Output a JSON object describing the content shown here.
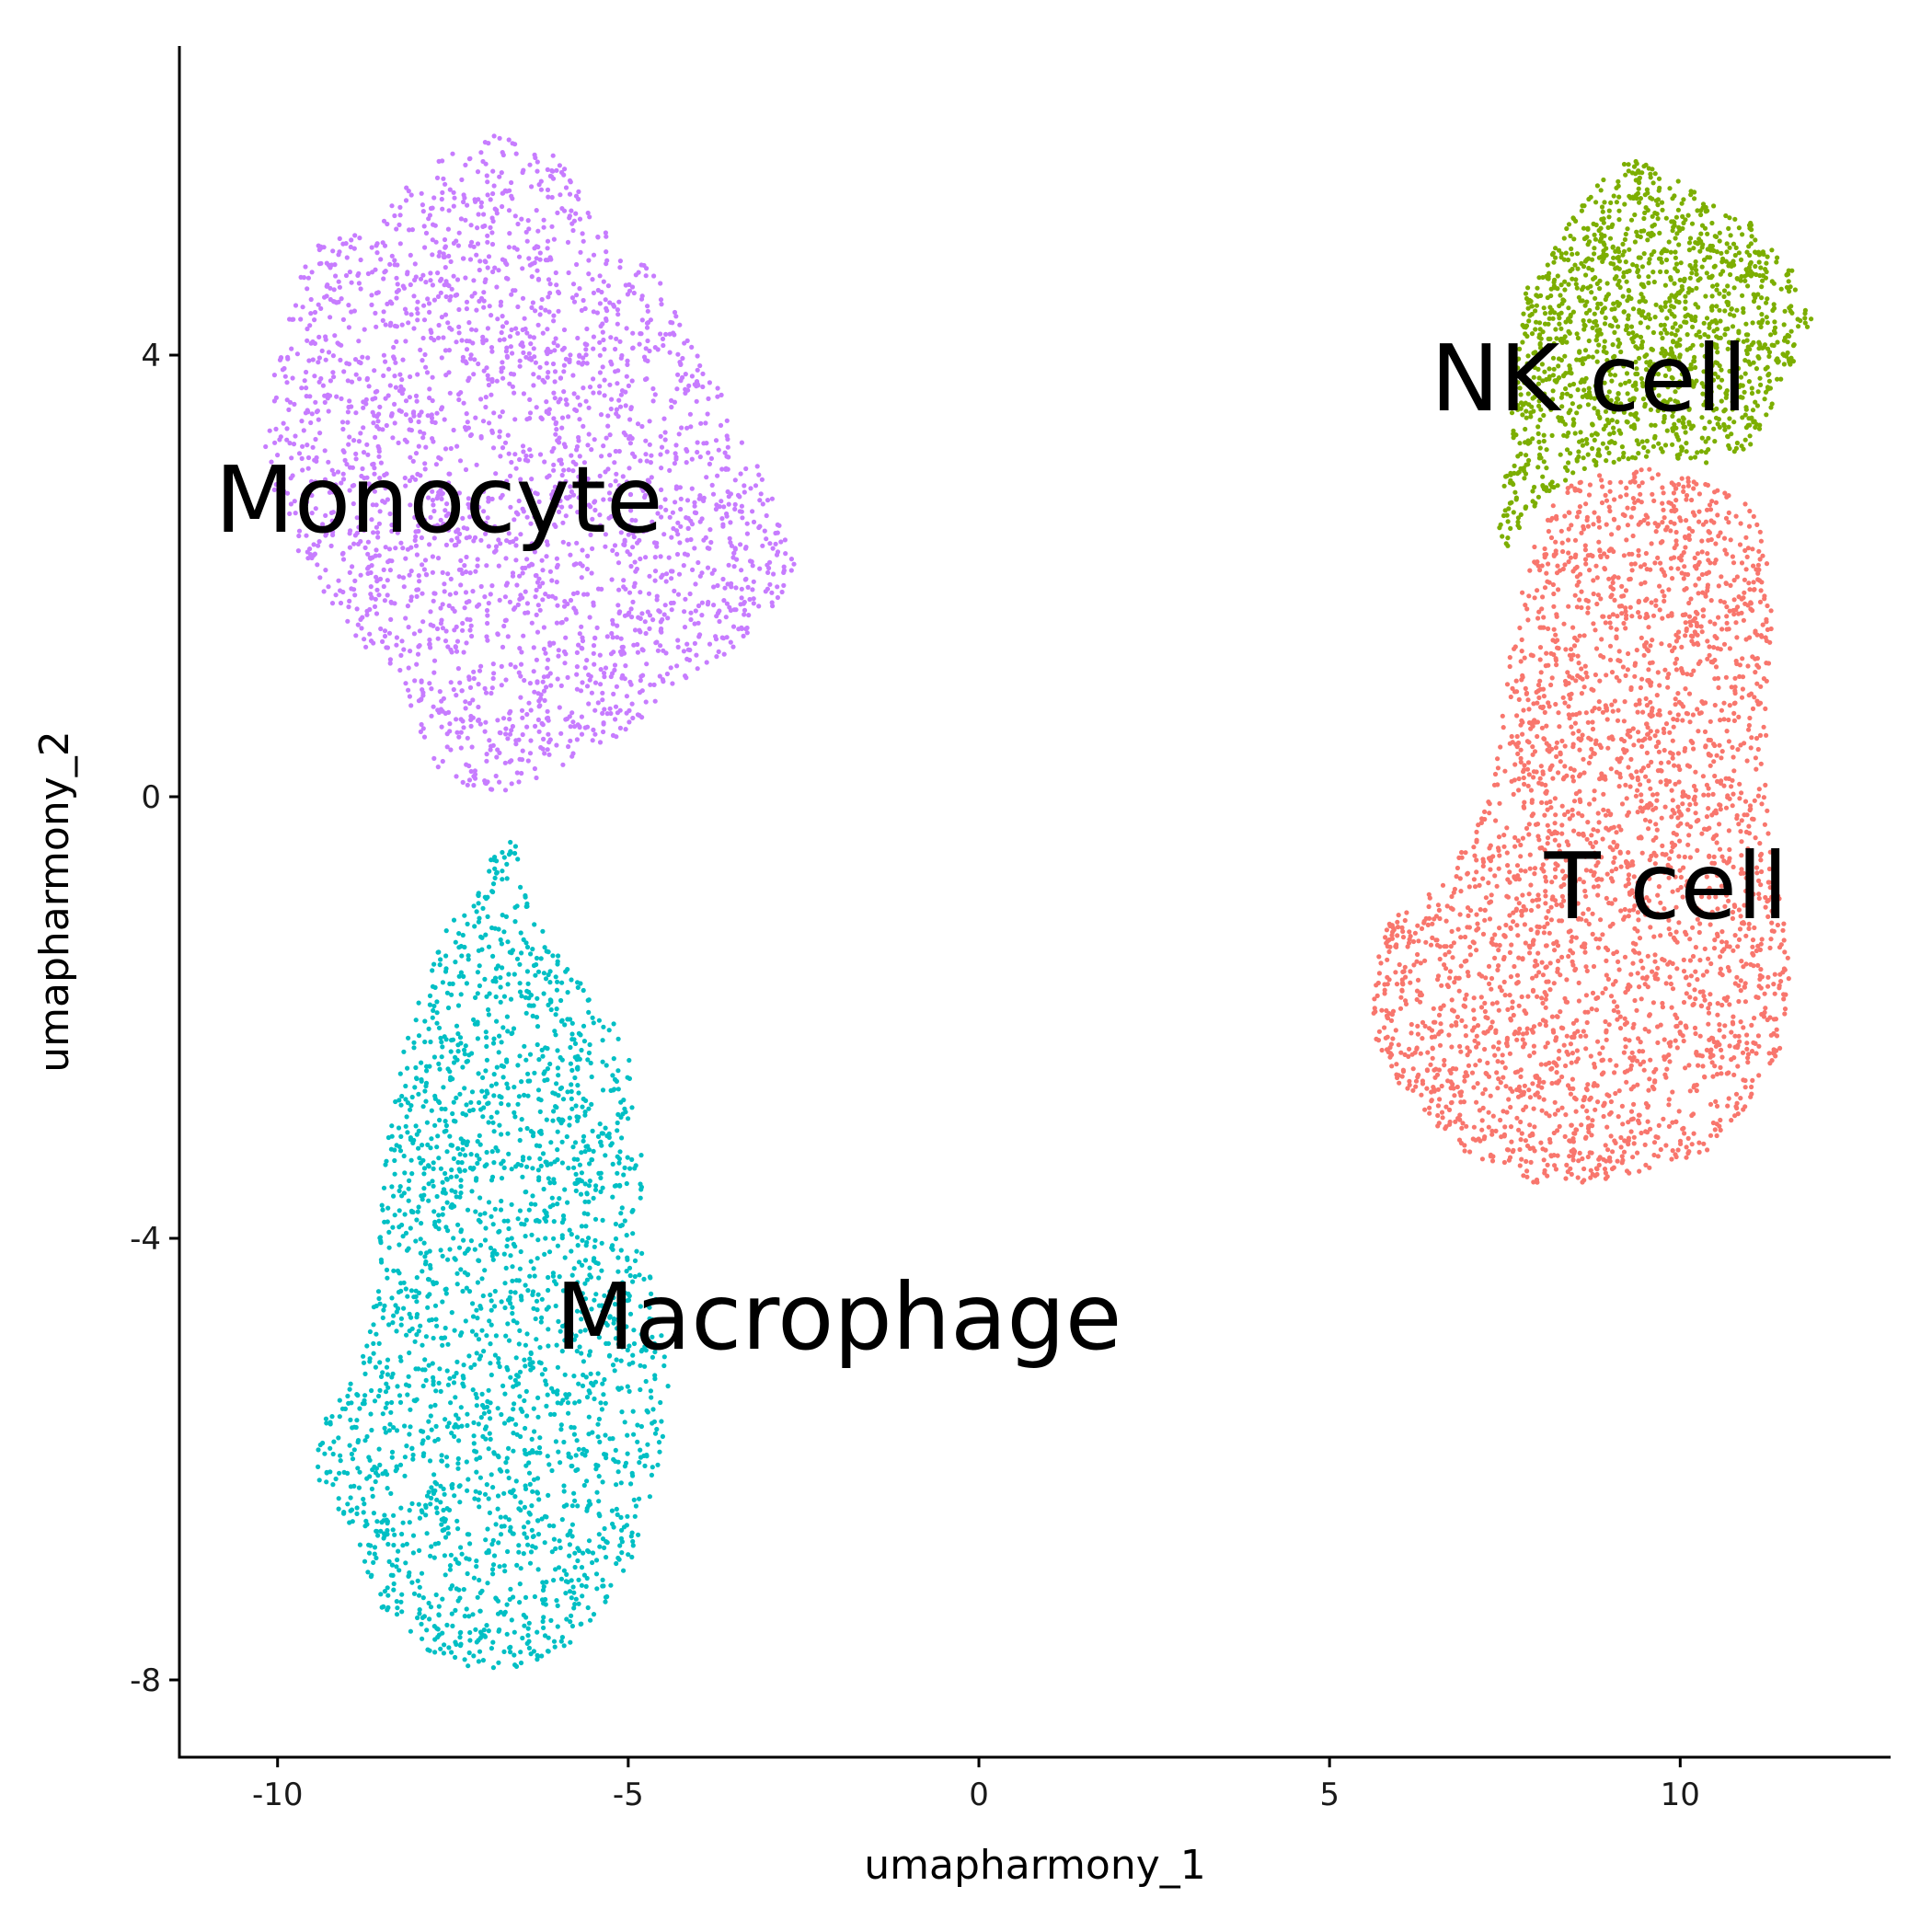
{
  "chart_data": {
    "type": "scatter",
    "xlabel": "umapharmony_1",
    "ylabel": "umapharmony_2",
    "xlim": [
      -11.4,
      13.0
    ],
    "ylim": [
      -8.7,
      6.8
    ],
    "x_ticks": [
      -10,
      -5,
      0,
      5,
      10
    ],
    "y_ticks": [
      -8,
      -4,
      0,
      4
    ],
    "x_tick_labels": [
      "-10",
      "-5",
      "0",
      "5",
      "10"
    ],
    "y_tick_labels": [
      "-8",
      "-4",
      "0",
      "4"
    ],
    "grid": false,
    "legend": "none",
    "cluster_labels": [
      {
        "text": "Monocyte",
        "x": -7.7,
        "y": 2.7
      },
      {
        "text": "Macrophage",
        "x": -2.0,
        "y": -4.7
      },
      {
        "text": "NK cell",
        "x": 8.7,
        "y": 3.8
      },
      {
        "text": "T cell",
        "x": 9.8,
        "y": -0.8
      }
    ],
    "series": [
      {
        "cluster": "Monocyte",
        "color": "#C77CFF",
        "point_count": 2600,
        "outline": [
          [
            -6.9,
            6.0
          ],
          [
            -6.0,
            5.8
          ],
          [
            -5.2,
            5.0
          ],
          [
            -4.5,
            4.7
          ],
          [
            -4.2,
            4.2
          ],
          [
            -3.6,
            3.6
          ],
          [
            -3.0,
            2.8
          ],
          [
            -2.6,
            2.1
          ],
          [
            -2.9,
            1.7
          ],
          [
            -3.6,
            1.3
          ],
          [
            -4.3,
            1.0
          ],
          [
            -5.0,
            0.6
          ],
          [
            -5.9,
            0.3
          ],
          [
            -6.4,
            0.1
          ],
          [
            -6.8,
            0.0
          ],
          [
            -7.3,
            0.1
          ],
          [
            -7.8,
            0.3
          ],
          [
            -8.1,
            0.7
          ],
          [
            -8.3,
            1.1
          ],
          [
            -9.0,
            1.5
          ],
          [
            -9.8,
            2.3
          ],
          [
            -10.2,
            3.0
          ],
          [
            -10.1,
            3.7
          ],
          [
            -9.8,
            4.5
          ],
          [
            -9.5,
            5.0
          ],
          [
            -8.8,
            5.1
          ],
          [
            -8.2,
            5.5
          ],
          [
            -7.5,
            5.9
          ]
        ]
      },
      {
        "cluster": "Macrophage",
        "color": "#00BFC4",
        "point_count": 2300,
        "outline": [
          [
            -6.6,
            -0.3
          ],
          [
            -6.5,
            -0.8
          ],
          [
            -6.1,
            -1.3
          ],
          [
            -5.8,
            -1.6
          ],
          [
            -5.3,
            -1.9
          ],
          [
            -5.0,
            -2.3
          ],
          [
            -4.8,
            -3.2
          ],
          [
            -4.8,
            -4.0
          ],
          [
            -4.6,
            -4.5
          ],
          [
            -4.4,
            -5.4
          ],
          [
            -4.6,
            -6.2
          ],
          [
            -5.0,
            -7.0
          ],
          [
            -5.6,
            -7.6
          ],
          [
            -6.5,
            -7.9
          ],
          [
            -7.3,
            -7.9
          ],
          [
            -8.0,
            -7.7
          ],
          [
            -8.6,
            -7.3
          ],
          [
            -9.0,
            -6.6
          ],
          [
            -9.5,
            -6.1
          ],
          [
            -9.3,
            -5.6
          ],
          [
            -8.8,
            -5.1
          ],
          [
            -8.6,
            -4.5
          ],
          [
            -8.5,
            -3.5
          ],
          [
            -8.3,
            -2.5
          ],
          [
            -7.8,
            -1.4
          ],
          [
            -7.3,
            -0.9
          ],
          [
            -6.9,
            -0.5
          ]
        ]
      },
      {
        "cluster": "NK cell",
        "color": "#7CAE00",
        "point_count": 1500,
        "outline": [
          [
            9.3,
            5.8
          ],
          [
            10.2,
            5.5
          ],
          [
            11.0,
            5.2
          ],
          [
            11.7,
            4.7
          ],
          [
            11.9,
            4.3
          ],
          [
            11.5,
            3.8
          ],
          [
            11.1,
            3.2
          ],
          [
            10.4,
            3.0
          ],
          [
            9.7,
            3.1
          ],
          [
            9.0,
            3.0
          ],
          [
            8.3,
            2.8
          ],
          [
            7.8,
            2.5
          ],
          [
            7.5,
            2.2
          ],
          [
            7.4,
            2.5
          ],
          [
            7.6,
            3.3
          ],
          [
            7.6,
            4.1
          ],
          [
            7.8,
            4.6
          ],
          [
            8.3,
            5.1
          ],
          [
            8.7,
            5.5
          ]
        ]
      },
      {
        "cluster": "T cell",
        "color": "#F8766D",
        "point_count": 3100,
        "outline": [
          [
            8.3,
            2.8
          ],
          [
            9.3,
            3.0
          ],
          [
            10.2,
            2.9
          ],
          [
            11.1,
            2.6
          ],
          [
            11.3,
            1.9
          ],
          [
            11.3,
            1.2
          ],
          [
            11.2,
            0.3
          ],
          [
            11.3,
            -0.6
          ],
          [
            11.6,
            -1.4
          ],
          [
            11.5,
            -2.2
          ],
          [
            11.1,
            -2.7
          ],
          [
            10.4,
            -3.2
          ],
          [
            9.5,
            -3.4
          ],
          [
            8.6,
            -3.5
          ],
          [
            7.9,
            -3.5
          ],
          [
            7.1,
            -3.3
          ],
          [
            6.5,
            -3.0
          ],
          [
            6.0,
            -2.7
          ],
          [
            5.6,
            -2.1
          ],
          [
            5.6,
            -1.6
          ],
          [
            5.8,
            -1.1
          ],
          [
            6.4,
            -0.9
          ],
          [
            7.0,
            -0.4
          ],
          [
            7.3,
            0.0
          ],
          [
            7.5,
            0.9
          ],
          [
            7.6,
            1.4
          ],
          [
            7.8,
            2.1
          ]
        ]
      }
    ]
  }
}
